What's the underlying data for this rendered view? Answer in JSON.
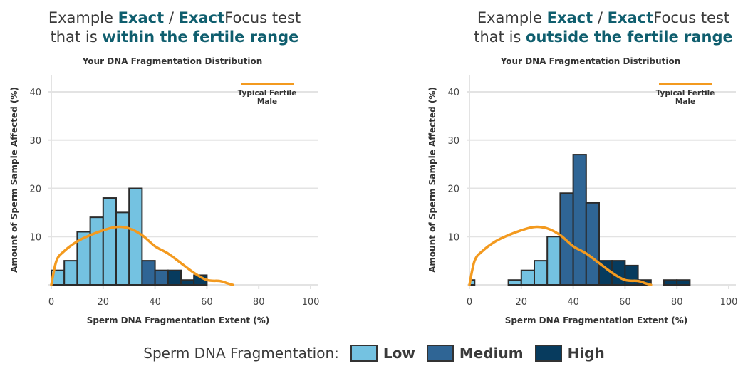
{
  "legend": {
    "label": "Sperm DNA Fragmentation:",
    "items": [
      {
        "name": "Low",
        "color": "#74c2e1"
      },
      {
        "name": "Medium",
        "color": "#2f6595"
      },
      {
        "name": "High",
        "color": "#073b5e"
      }
    ]
  },
  "colors": {
    "accent_text": "#0f5e6e",
    "curve": "#f39a1f",
    "bar_outline": "#2b2b2b"
  },
  "chart_data": [
    {
      "type": "bar",
      "heading": {
        "pre": "Example ",
        "b1": "Exact",
        "mid": " / ",
        "b2": "Exact",
        "post": "Focus test",
        "line2_pre": "that is ",
        "line2_b": "within the fertile range"
      },
      "title": "Your DNA Fragmentation Distribution",
      "xlabel": "Sperm DNA Fragmentation Extent (%)",
      "ylabel": "Amount of Sperm Sample Affected (%)",
      "xlim": [
        0,
        100
      ],
      "ylim": [
        0,
        40
      ],
      "xticks": [
        "0",
        "20",
        "40",
        "60",
        "80",
        "100"
      ],
      "yticks": [
        "10",
        "20",
        "30",
        "40"
      ],
      "grid": true,
      "legend_position": "top-right",
      "bins": [
        {
          "x0": 0,
          "x1": 5,
          "value": 3,
          "level": "Low"
        },
        {
          "x0": 5,
          "x1": 10,
          "value": 5,
          "level": "Low"
        },
        {
          "x0": 10,
          "x1": 15,
          "value": 11,
          "level": "Low"
        },
        {
          "x0": 15,
          "x1": 20,
          "value": 14,
          "level": "Low"
        },
        {
          "x0": 20,
          "x1": 25,
          "value": 18,
          "level": "Low"
        },
        {
          "x0": 25,
          "x1": 30,
          "value": 15,
          "level": "Low"
        },
        {
          "x0": 30,
          "x1": 35,
          "value": 20,
          "level": "Low"
        },
        {
          "x0": 35,
          "x1": 40,
          "value": 5,
          "level": "Medium"
        },
        {
          "x0": 40,
          "x1": 45,
          "value": 3,
          "level": "Medium"
        },
        {
          "x0": 45,
          "x1": 50,
          "value": 3,
          "level": "High"
        },
        {
          "x0": 50,
          "x1": 55,
          "value": 1,
          "level": "High"
        },
        {
          "x0": 55,
          "x1": 60,
          "value": 2,
          "level": "High"
        }
      ],
      "curve": {
        "name": "Typical Fertile Male",
        "points": [
          [
            0,
            0
          ],
          [
            2,
            5
          ],
          [
            5,
            7
          ],
          [
            10,
            9
          ],
          [
            15,
            10.3
          ],
          [
            20,
            11.3
          ],
          [
            25,
            12
          ],
          [
            30,
            11.7
          ],
          [
            35,
            10.3
          ],
          [
            40,
            8
          ],
          [
            45,
            6.5
          ],
          [
            50,
            4.5
          ],
          [
            55,
            2.5
          ],
          [
            60,
            1
          ],
          [
            65,
            0.8
          ],
          [
            68,
            0.3
          ],
          [
            70,
            0
          ]
        ]
      }
    },
    {
      "type": "bar",
      "heading": {
        "pre": "Example ",
        "b1": "Exact",
        "mid": " / ",
        "b2": "Exact",
        "post": "Focus test",
        "line2_pre": "that is ",
        "line2_b": "outside the fertile range"
      },
      "title": "Your DNA Fragmentation Distribution",
      "xlabel": "Sperm DNA Fragmentation Extent (%)",
      "ylabel": "Amount of Sperm Sample Affected (%)",
      "xlim": [
        0,
        100
      ],
      "ylim": [
        0,
        40
      ],
      "xticks": [
        "0",
        "20",
        "40",
        "60",
        "80",
        "100"
      ],
      "yticks": [
        "10",
        "20",
        "30",
        "40"
      ],
      "grid": true,
      "legend_position": "top-right",
      "bins": [
        {
          "x0": 0,
          "x1": 2,
          "value": 1,
          "level": "Low"
        },
        {
          "x0": 15,
          "x1": 20,
          "value": 1,
          "level": "Low"
        },
        {
          "x0": 20,
          "x1": 25,
          "value": 3,
          "level": "Low"
        },
        {
          "x0": 25,
          "x1": 30,
          "value": 5,
          "level": "Low"
        },
        {
          "x0": 30,
          "x1": 35,
          "value": 10,
          "level": "Low"
        },
        {
          "x0": 35,
          "x1": 40,
          "value": 19,
          "level": "Medium"
        },
        {
          "x0": 40,
          "x1": 45,
          "value": 27,
          "level": "Medium"
        },
        {
          "x0": 45,
          "x1": 50,
          "value": 17,
          "level": "Medium"
        },
        {
          "x0": 50,
          "x1": 55,
          "value": 5,
          "level": "High"
        },
        {
          "x0": 55,
          "x1": 60,
          "value": 5,
          "level": "High"
        },
        {
          "x0": 60,
          "x1": 65,
          "value": 4,
          "level": "High"
        },
        {
          "x0": 65,
          "x1": 70,
          "value": 1,
          "level": "High"
        },
        {
          "x0": 75,
          "x1": 80,
          "value": 1,
          "level": "High"
        },
        {
          "x0": 80,
          "x1": 85,
          "value": 1,
          "level": "High"
        }
      ],
      "curve": {
        "name": "Typical Fertile Male",
        "points": [
          [
            0,
            0
          ],
          [
            2,
            5
          ],
          [
            5,
            7
          ],
          [
            10,
            9
          ],
          [
            15,
            10.3
          ],
          [
            20,
            11.3
          ],
          [
            25,
            12
          ],
          [
            30,
            11.7
          ],
          [
            35,
            10.3
          ],
          [
            40,
            8
          ],
          [
            45,
            6.5
          ],
          [
            50,
            4.5
          ],
          [
            55,
            2.5
          ],
          [
            60,
            1
          ],
          [
            65,
            0.8
          ],
          [
            68,
            0.3
          ],
          [
            70,
            0
          ]
        ]
      }
    }
  ]
}
